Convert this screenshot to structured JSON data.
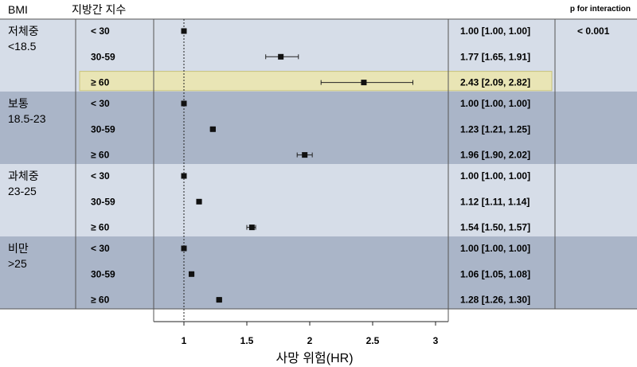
{
  "header": {
    "bmi": "BMI",
    "fatty_liver_index": "지방간 지수",
    "p_interaction_label": "p for interaction"
  },
  "p_interaction": "< 0.001",
  "colors": {
    "band_light": "#d6dde8",
    "band_dark": "#aab5c8",
    "highlight": "#e9e5b5",
    "highlight_border": "#c8c27a",
    "marker": "#111111"
  },
  "chart_data": {
    "type": "forest",
    "xlabel": "사망 위험(HR)",
    "xlim": [
      1,
      3
    ],
    "xticks": [
      "1",
      "1.5",
      "2",
      "2.5",
      "3"
    ],
    "reference_line": 1,
    "highlighted_row": "underweight-60plus",
    "groups": [
      {
        "label_line1": "저체중",
        "label_line2": "<18.5",
        "rows": [
          {
            "level": "< 30",
            "hr": 1.0,
            "lo": 1.0,
            "hi": 1.0,
            "text": "1.00 [1.00, 1.00]"
          },
          {
            "level": "30-59",
            "hr": 1.77,
            "lo": 1.65,
            "hi": 1.91,
            "text": "1.77 [1.65, 1.91]"
          },
          {
            "level": "≥ 60",
            "hr": 2.43,
            "lo": 2.09,
            "hi": 2.82,
            "text": "2.43 [2.09, 2.82]"
          }
        ]
      },
      {
        "label_line1": "보통",
        "label_line2": "18.5-23",
        "rows": [
          {
            "level": "< 30",
            "hr": 1.0,
            "lo": 1.0,
            "hi": 1.0,
            "text": "1.00 [1.00, 1.00]"
          },
          {
            "level": "30-59",
            "hr": 1.23,
            "lo": 1.21,
            "hi": 1.25,
            "text": "1.23 [1.21, 1.25]"
          },
          {
            "level": "≥ 60",
            "hr": 1.96,
            "lo": 1.9,
            "hi": 2.02,
            "text": "1.96 [1.90, 2.02]"
          }
        ]
      },
      {
        "label_line1": "과체중",
        "label_line2": "23-25",
        "rows": [
          {
            "level": "< 30",
            "hr": 1.0,
            "lo": 1.0,
            "hi": 1.0,
            "text": "1.00 [1.00, 1.00]"
          },
          {
            "level": "30-59",
            "hr": 1.12,
            "lo": 1.11,
            "hi": 1.14,
            "text": "1.12 [1.11, 1.14]"
          },
          {
            "level": "≥ 60",
            "hr": 1.54,
            "lo": 1.5,
            "hi": 1.57,
            "text": "1.54 [1.50, 1.57]"
          }
        ]
      },
      {
        "label_line1": "비만",
        "label_line2": ">25",
        "rows": [
          {
            "level": "< 30",
            "hr": 1.0,
            "lo": 1.0,
            "hi": 1.0,
            "text": "1.00 [1.00, 1.00]"
          },
          {
            "level": "30-59",
            "hr": 1.06,
            "lo": 1.05,
            "hi": 1.08,
            "text": "1.06 [1.05, 1.08]"
          },
          {
            "level": "≥ 60",
            "hr": 1.28,
            "lo": 1.26,
            "hi": 1.3,
            "text": "1.28 [1.26, 1.30]"
          }
        ]
      }
    ]
  }
}
